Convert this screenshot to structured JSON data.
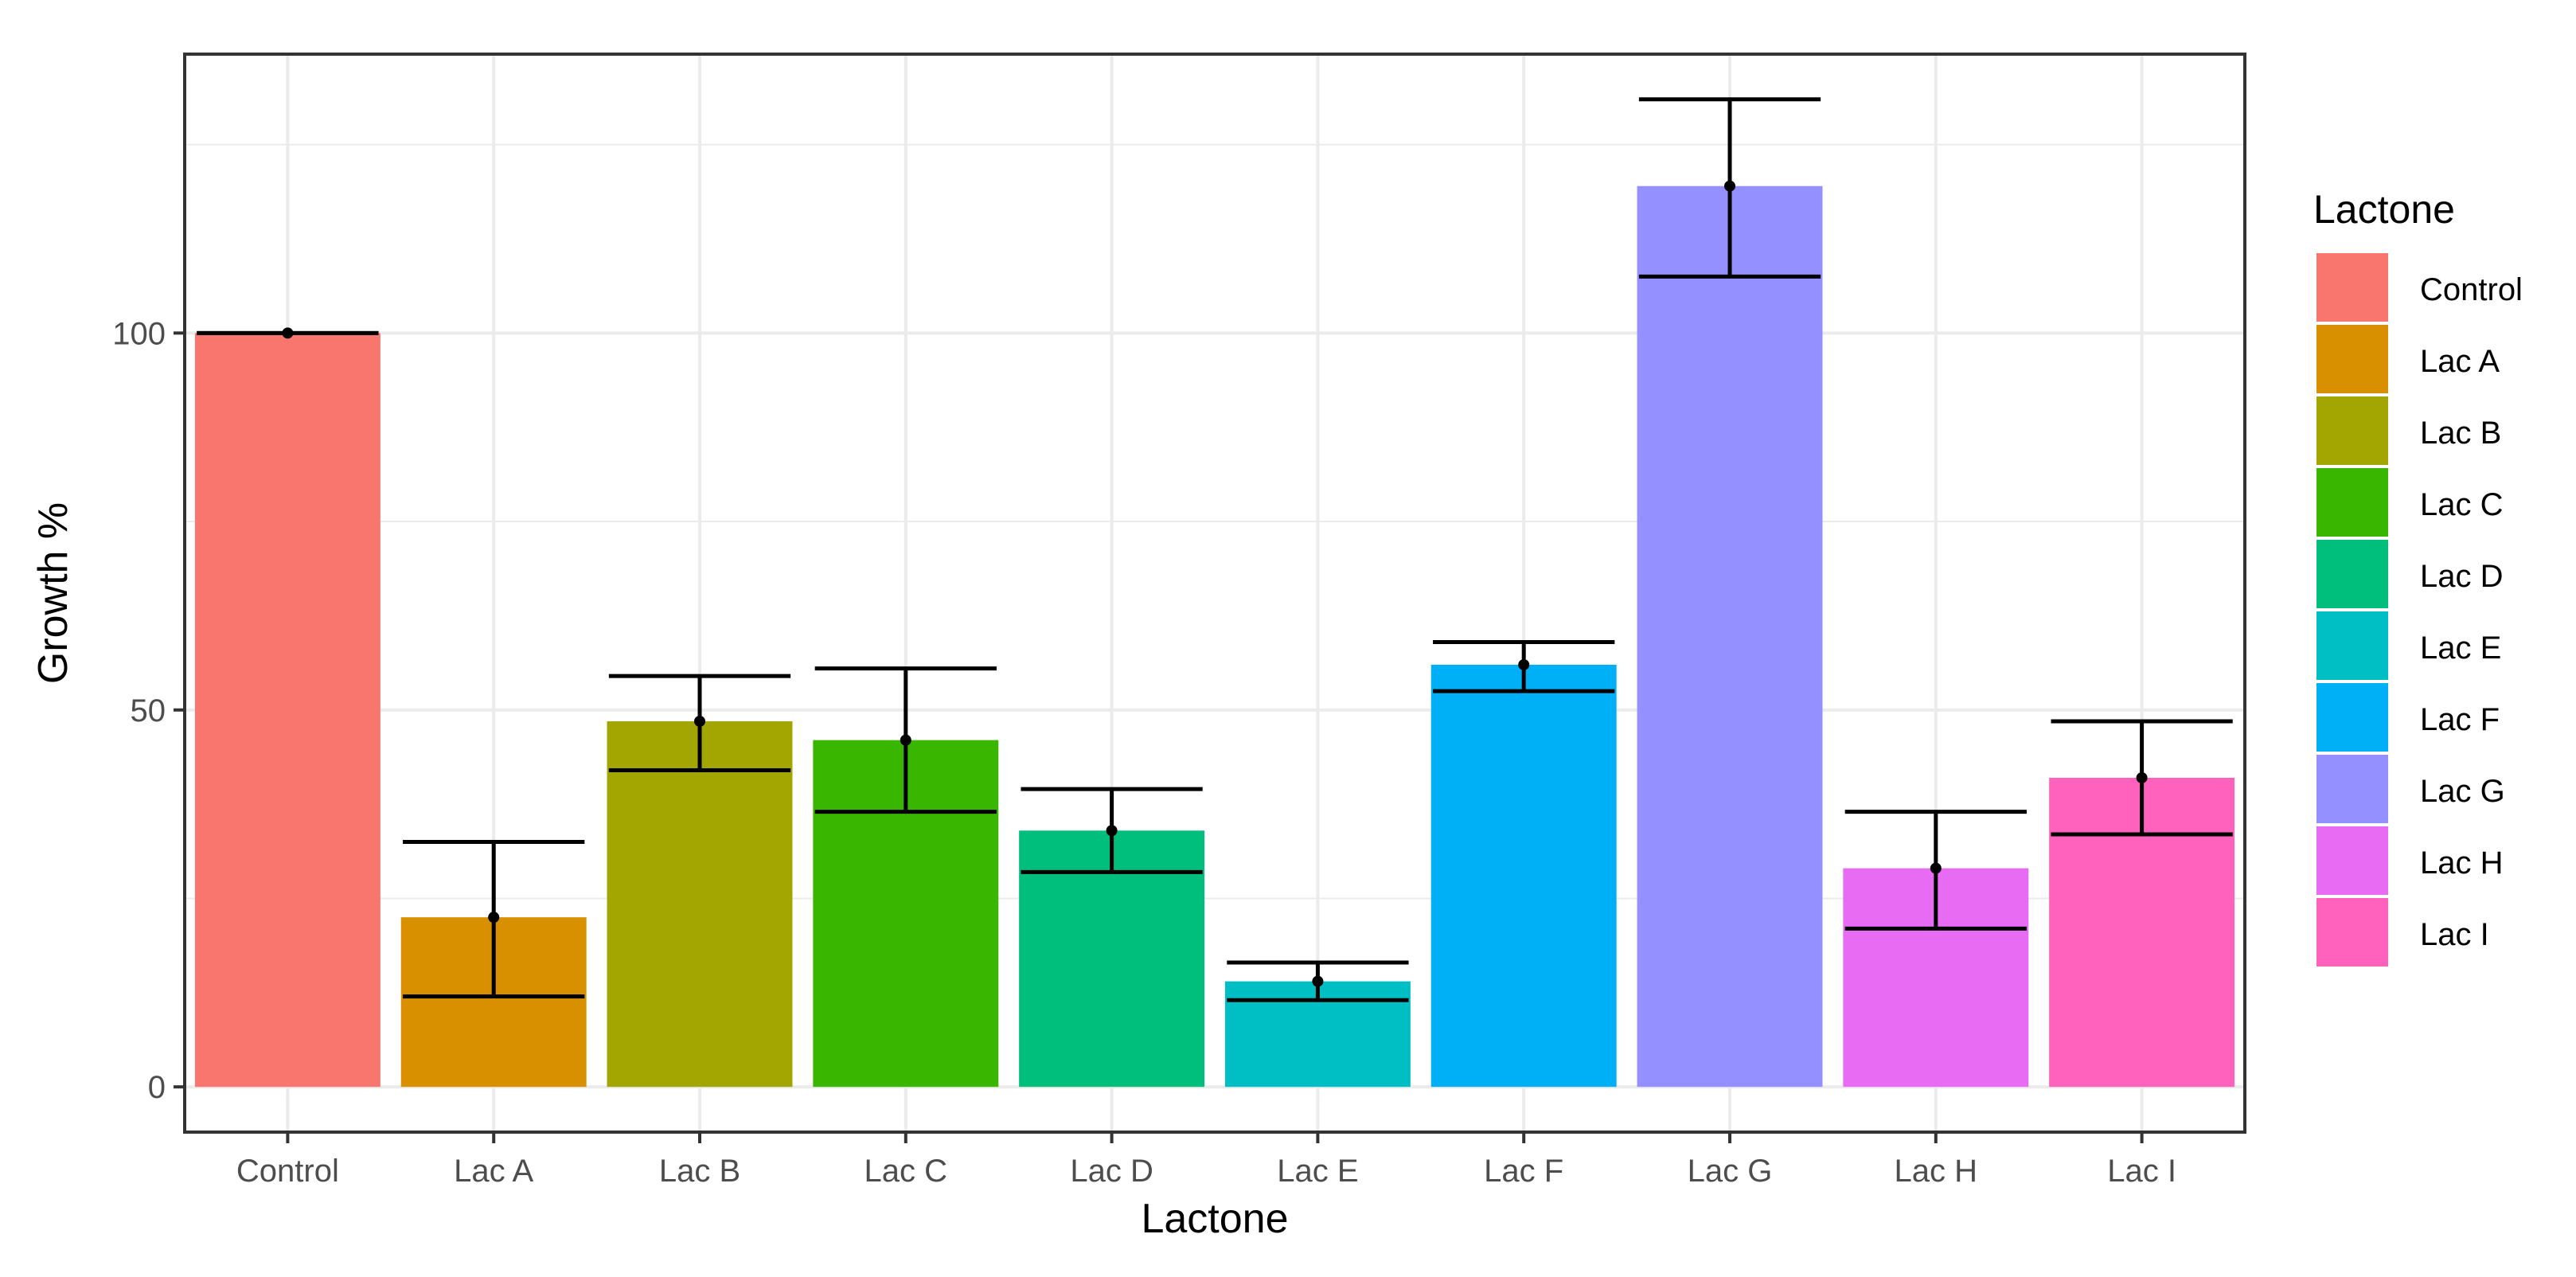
{
  "chart_data": {
    "type": "bar",
    "title": "",
    "xlabel": "Lactone",
    "ylabel": "Growth %",
    "ylim": [
      -6,
      137
    ],
    "yticks": [
      0,
      50,
      100
    ],
    "ytick_labels": [
      "0",
      "50",
      "100"
    ],
    "grid": true,
    "legend_title": "Lactone",
    "legend_position": "right",
    "categories": [
      "Control",
      "Lac A",
      "Lac B",
      "Lac C",
      "Lac D",
      "Lac E",
      "Lac F",
      "Lac G",
      "Lac H",
      "Lac I"
    ],
    "values": [
      100,
      22.5,
      48.5,
      46,
      34,
      14,
      56,
      119.5,
      29,
      41
    ],
    "error_low": [
      100,
      12,
      42,
      36.5,
      28.5,
      11.5,
      52.5,
      107.5,
      21,
      33.5
    ],
    "error_high": [
      100,
      32.5,
      54.5,
      55.5,
      39.5,
      16.5,
      59,
      131,
      36.5,
      48.5
    ],
    "colors": [
      "#F8766D",
      "#D89000",
      "#A3A500",
      "#39B600",
      "#00BF7D",
      "#00BFC4",
      "#00B0F6",
      "#9590FF",
      "#E76BF3",
      "#FF62BC"
    ]
  }
}
